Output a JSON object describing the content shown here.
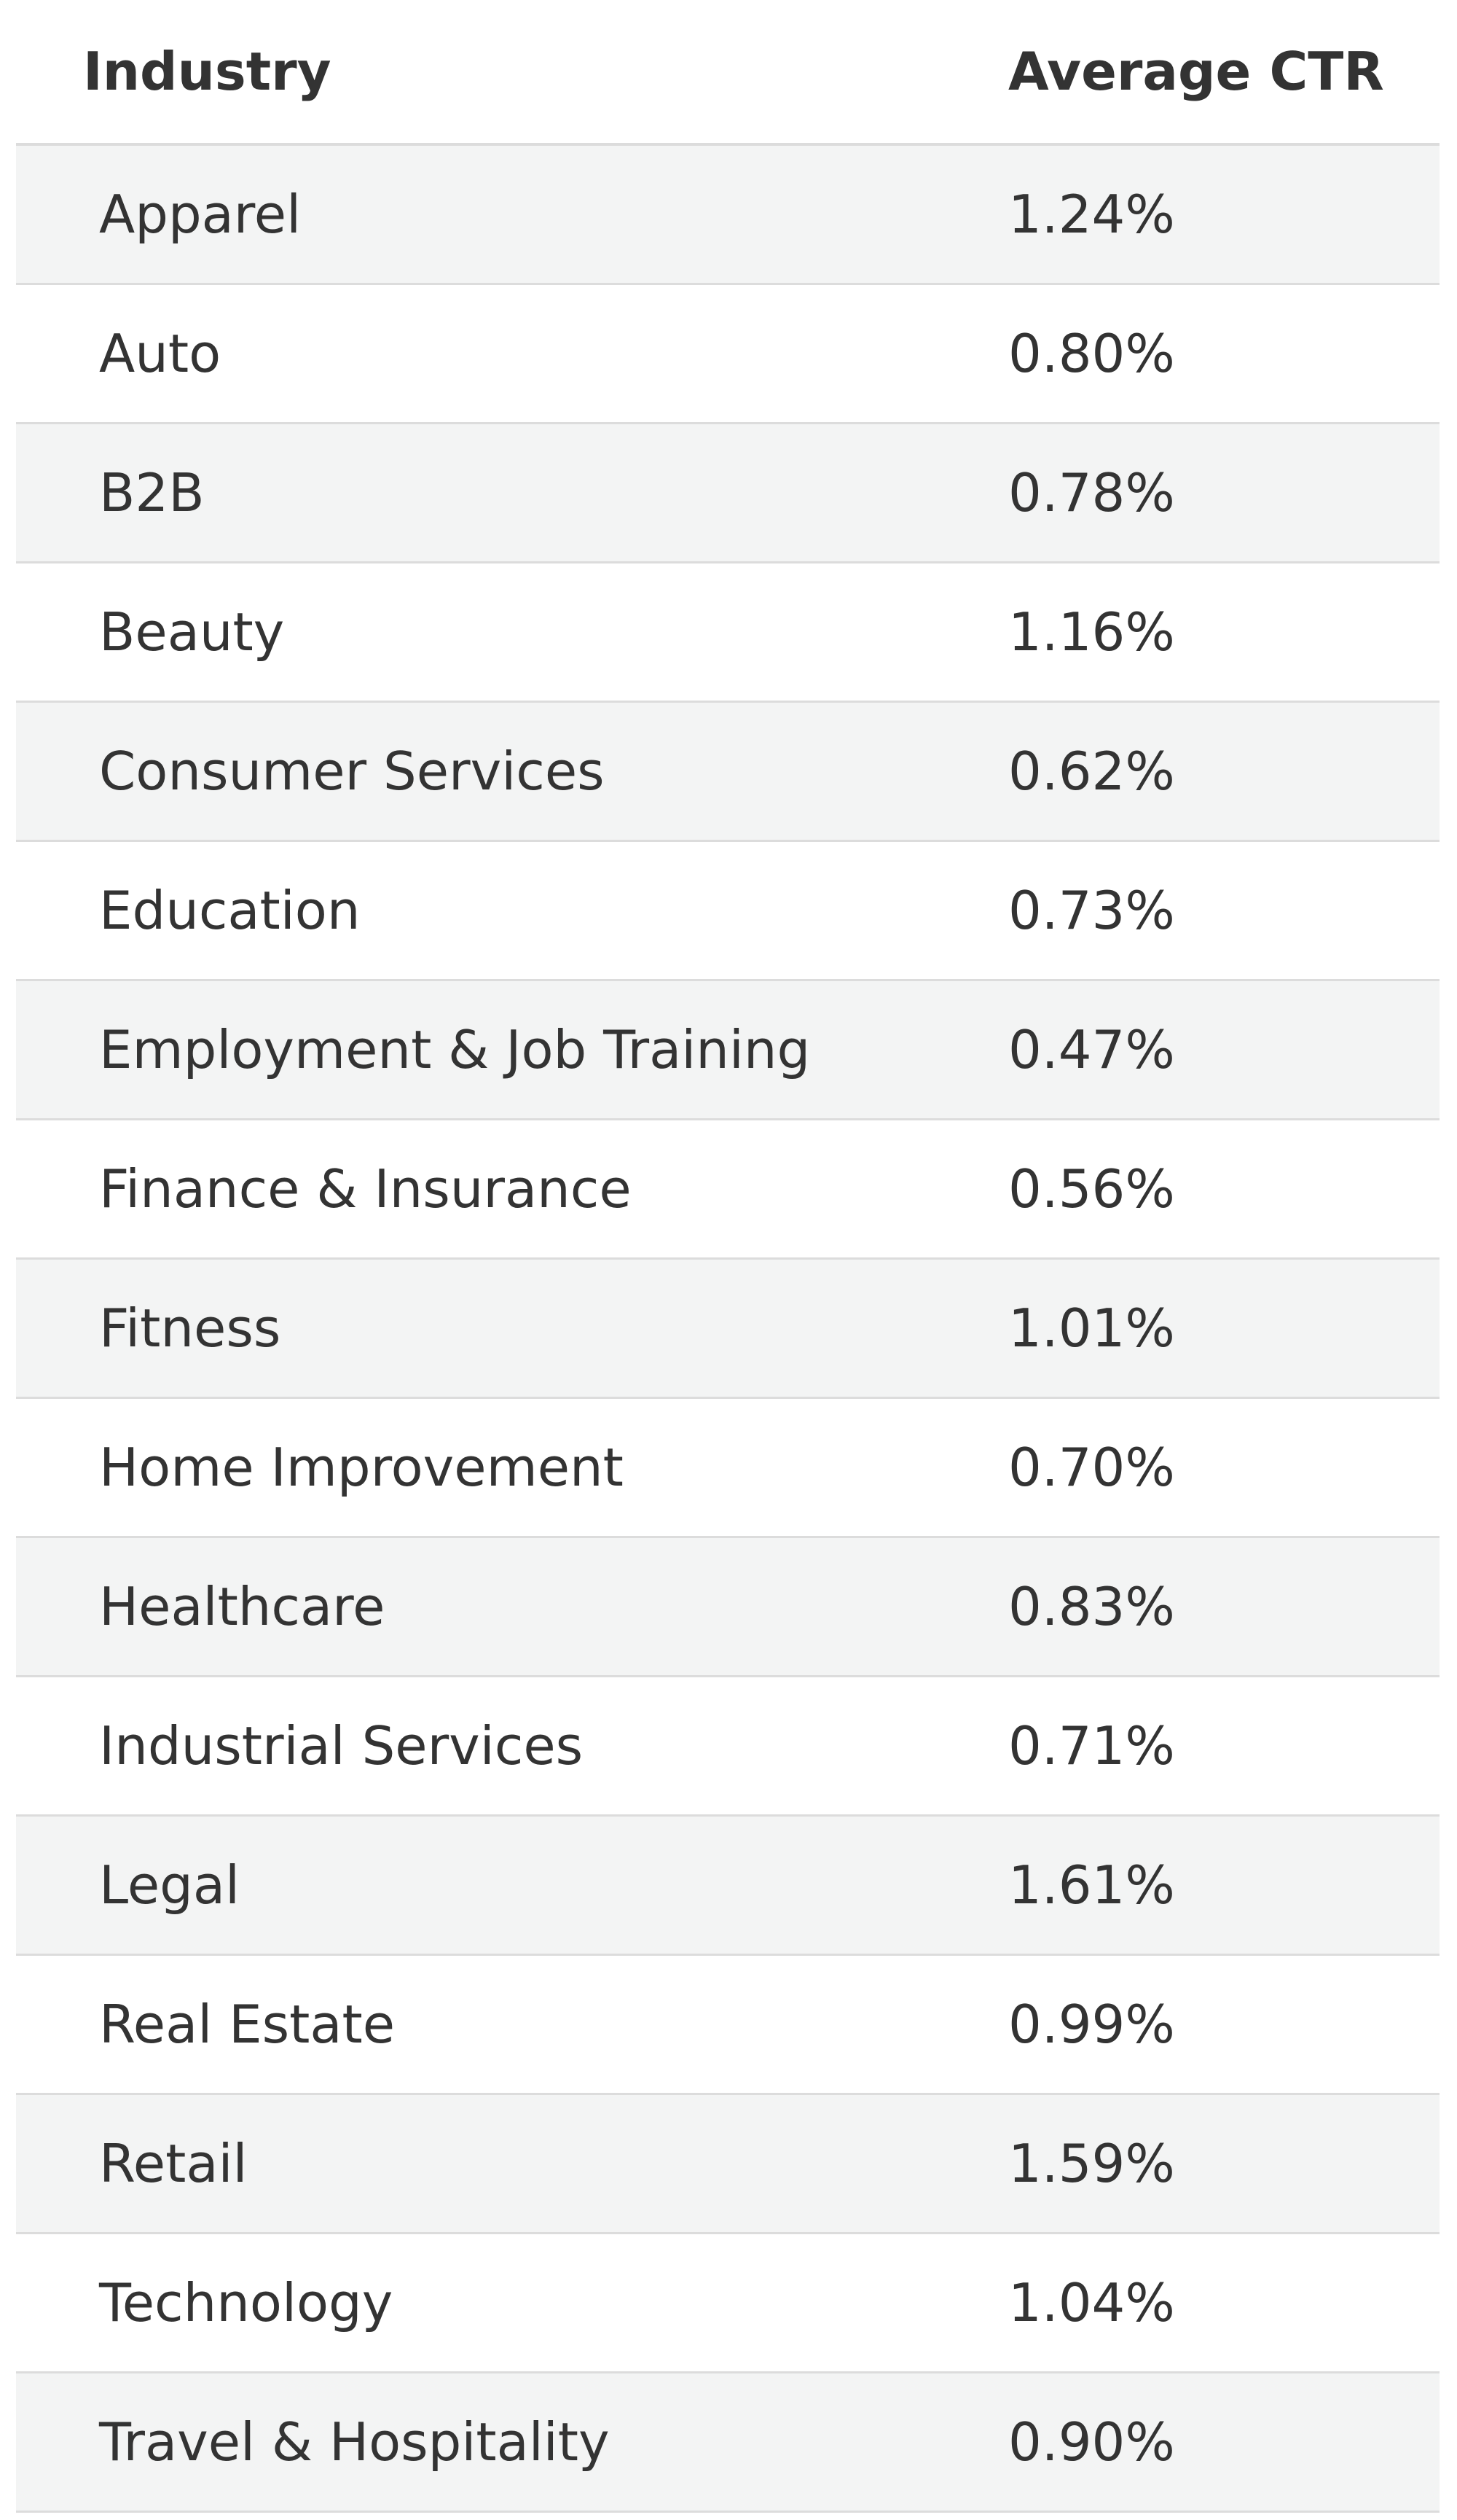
{
  "table": {
    "header": [
      "Industry",
      "Average CTR"
    ],
    "rows": [
      [
        "Apparel",
        "1.24%"
      ],
      [
        "Auto",
        "0.80%"
      ],
      [
        "B2B",
        "0.78%"
      ],
      [
        "Beauty",
        "1.16%"
      ],
      [
        "Consumer Services",
        "0.62%"
      ],
      [
        "Education",
        "0.73%"
      ],
      [
        "Employment & Job Training",
        "0.47%"
      ],
      [
        "Finance & Insurance",
        "0.56%"
      ],
      [
        "Fitness",
        "1.01%"
      ],
      [
        "Home Improvement",
        "0.70%"
      ],
      [
        "Healthcare",
        "0.83%"
      ],
      [
        "Industrial Services",
        "0.71%"
      ],
      [
        "Legal",
        "1.61%"
      ],
      [
        "Real Estate",
        "0.99%"
      ],
      [
        "Retail",
        "1.59%"
      ],
      [
        "Technology",
        "1.04%"
      ],
      [
        "Travel & Hospitality",
        "0.90%"
      ]
    ]
  }
}
